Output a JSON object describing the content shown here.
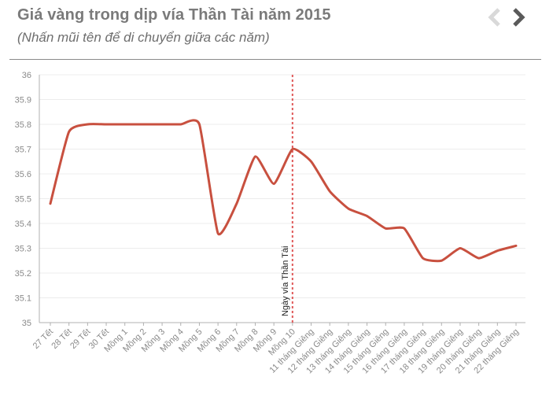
{
  "header": {
    "title": "Giá vàng trong dịp vía Thần Tài năm 2015",
    "subtitle": "(Nhấn mũi tên để di chuyển giữa các năm)",
    "prev_icon": "chevron-left-icon",
    "next_icon": "chevron-right-icon"
  },
  "colors": {
    "line": "#c8503f",
    "marker": "#e05a5a",
    "grid": "#ececec",
    "axis": "#b0b0b0",
    "nav_active": "#5a5a5a",
    "nav_disabled": "#d9d9d9"
  },
  "chart_data": {
    "type": "line",
    "title": "Giá vàng trong dịp vía Thần Tài năm 2015",
    "xlabel": "",
    "ylabel": "",
    "ylim": [
      35,
      36
    ],
    "yticks": [
      "35",
      "35.1",
      "35.2",
      "35.3",
      "35.4",
      "35.5",
      "35.6",
      "35.7",
      "35.8",
      "35.9",
      "36"
    ],
    "grid": true,
    "legend": "none",
    "categories": [
      "27 Tết",
      "28 Tết",
      "29 Tết",
      "30 Tết",
      "Mồng 1",
      "Mồng 2",
      "Mồng 3",
      "Mồng 4",
      "Mồng 5",
      "Mồng 6",
      "Mồng 7",
      "Mồng 8",
      "Mồng 9",
      "Mồng 10",
      "11 tháng Giêng",
      "12 tháng Giêng",
      "13 tháng Giêng",
      "14 tháng Giêng",
      "15 tháng Giêng",
      "16 tháng Giêng",
      "17 tháng Giêng",
      "18 tháng Giêng",
      "19 tháng Giêng",
      "20 tháng Giêng",
      "21 tháng Giêng",
      "22 tháng Giêng"
    ],
    "series": [
      {
        "values": [
          35.48,
          35.77,
          35.8,
          35.8,
          35.8,
          35.8,
          35.8,
          35.8,
          35.8,
          35.36,
          35.48,
          35.67,
          35.56,
          35.7,
          35.65,
          35.53,
          35.46,
          35.43,
          35.38,
          35.38,
          35.26,
          35.25,
          35.3,
          35.26,
          35.29,
          35.31
        ]
      }
    ],
    "annotation": {
      "category": "Mồng 10",
      "label": "Ngày vía Thần Tài"
    }
  }
}
